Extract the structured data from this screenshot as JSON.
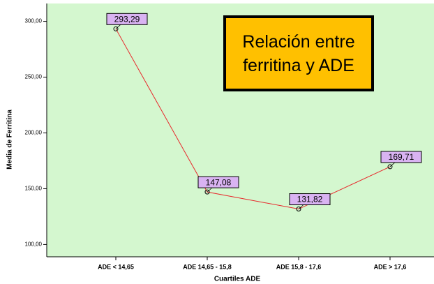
{
  "chart_data": {
    "type": "line",
    "title": "Relación entre ferritina y ADE",
    "x_label": "Cuartiles ADE",
    "y_label": "Media de Ferritina",
    "categories": [
      "ADE < 14,65",
      "ADE 14,65 - 15,8",
      "ADE 15,8 - 17,6",
      "ADE > 17,6"
    ],
    "values": [
      293.29,
      147.08,
      131.82,
      169.71
    ],
    "value_labels": [
      "293,29",
      "147,08",
      "131,82",
      "169,71"
    ],
    "color": "#e8262a",
    "ylim": [
      89,
      316
    ],
    "yticks": [
      {
        "value": 100,
        "label": "100,00"
      },
      {
        "value": 150,
        "label": "150,00"
      },
      {
        "value": 200,
        "label": "200,00"
      },
      {
        "value": 250,
        "label": "250,00"
      },
      {
        "value": 300,
        "label": "300,00"
      }
    ]
  }
}
